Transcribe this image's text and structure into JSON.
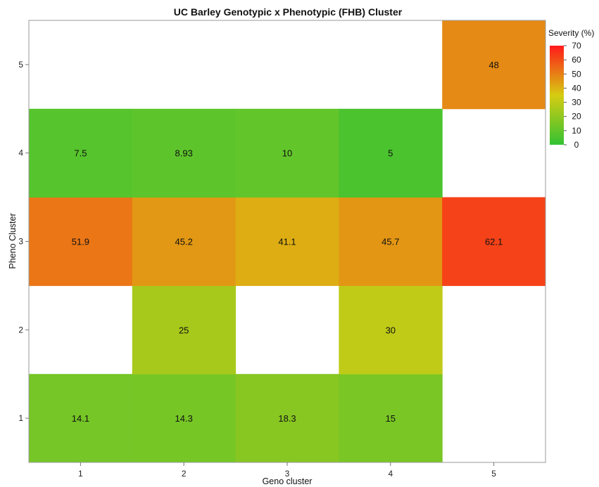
{
  "chart_data": {
    "type": "heatmap",
    "title": "UC Barley Genotypic x Phenotypic (FHB) Cluster",
    "xlabel": "Geno cluster",
    "ylabel": "Pheno Cluster",
    "x_categories": [
      "1",
      "2",
      "3",
      "4",
      "5"
    ],
    "y_categories": [
      "1",
      "2",
      "3",
      "4",
      "5"
    ],
    "cells": [
      {
        "x": "1",
        "y": "1",
        "value": 14.1,
        "label": "14.1"
      },
      {
        "x": "2",
        "y": "1",
        "value": 14.3,
        "label": "14.3"
      },
      {
        "x": "3",
        "y": "1",
        "value": 18.3,
        "label": "18.3"
      },
      {
        "x": "4",
        "y": "1",
        "value": 15,
        "label": "15"
      },
      {
        "x": "2",
        "y": "2",
        "value": 25,
        "label": "25"
      },
      {
        "x": "4",
        "y": "2",
        "value": 30,
        "label": "30"
      },
      {
        "x": "1",
        "y": "3",
        "value": 51.9,
        "label": "51.9"
      },
      {
        "x": "2",
        "y": "3",
        "value": 45.2,
        "label": "45.2"
      },
      {
        "x": "3",
        "y": "3",
        "value": 41.1,
        "label": "41.1"
      },
      {
        "x": "4",
        "y": "3",
        "value": 45.7,
        "label": "45.7"
      },
      {
        "x": "5",
        "y": "3",
        "value": 62.1,
        "label": "62.1"
      },
      {
        "x": "1",
        "y": "4",
        "value": 7.5,
        "label": "7.5"
      },
      {
        "x": "2",
        "y": "4",
        "value": 8.93,
        "label": "8.93"
      },
      {
        "x": "3",
        "y": "4",
        "value": 10,
        "label": "10"
      },
      {
        "x": "4",
        "y": "4",
        "value": 5,
        "label": "5"
      },
      {
        "x": "5",
        "y": "5",
        "value": 48,
        "label": "48"
      }
    ],
    "legend": {
      "title": "Severity (%)",
      "placement": "top-right",
      "range": [
        0,
        70
      ],
      "ticks": [
        "70",
        "60",
        "50",
        "40",
        "30",
        "20",
        "10",
        "0"
      ],
      "color_stops": [
        {
          "value": 0,
          "color": "#33c233"
        },
        {
          "value": 35,
          "color": "#d6cc12"
        },
        {
          "value": 70,
          "color": "#ff1a1a"
        }
      ]
    },
    "grid": false
  }
}
